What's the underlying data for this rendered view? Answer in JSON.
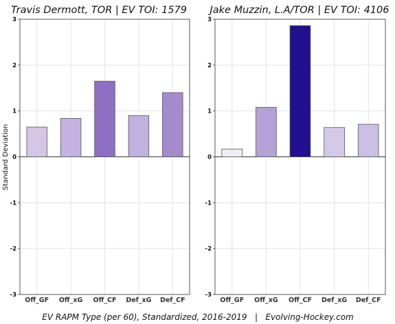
{
  "caption": "EV RAPM Type (per 60), Standardized, 2016-2019   |   Evolving-Hockey.com",
  "y_axis_label": "Standard Deviation",
  "chart_data": [
    {
      "type": "bar",
      "title": "Travis Dermott, TOR  |  EV TOI: 1579",
      "categories": [
        "Off_GF",
        "Off_xG",
        "Off_CF",
        "Def_xG",
        "Def_CF"
      ],
      "values": [
        0.65,
        0.84,
        1.65,
        0.9,
        1.4
      ],
      "colors": [
        "#d4c7e6",
        "#c4b3e0",
        "#8f6fc2",
        "#c2b0df",
        "#a48bcc"
      ],
      "ylabel": "Standard Deviation",
      "ylim": [
        -3,
        3
      ],
      "yticks": [
        -3,
        -2,
        -1,
        0,
        1,
        2,
        3
      ],
      "grid": true
    },
    {
      "type": "bar",
      "title": "Jake Muzzin, L.A/TOR  |  EV TOI: 4106",
      "categories": [
        "Off_GF",
        "Off_xG",
        "Off_CF",
        "Def_xG",
        "Def_CF"
      ],
      "values": [
        0.17,
        1.08,
        2.86,
        0.64,
        0.71
      ],
      "colors": [
        "#efedf5",
        "#b4a2d6",
        "#22108f",
        "#d4cae8",
        "#cbc0e3"
      ],
      "ylabel": "",
      "ylim": [
        -3,
        3
      ],
      "yticks": [
        -3,
        -2,
        -1,
        0,
        1,
        2,
        3
      ],
      "grid": true
    }
  ]
}
